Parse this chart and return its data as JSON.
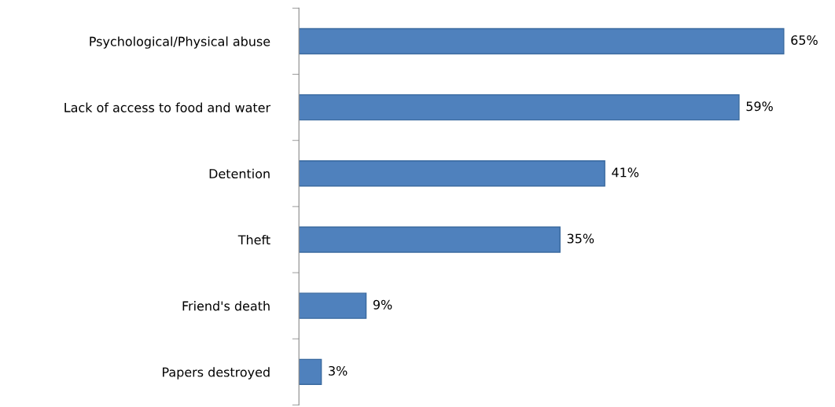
{
  "chart_data": {
    "type": "bar",
    "orientation": "horizontal",
    "categories": [
      "Psychological/Physical abuse",
      "Lack of access to food and water",
      "Detention",
      "Theft",
      "Friend's death",
      "Papers destroyed"
    ],
    "values": [
      65,
      59,
      41,
      35,
      9,
      3
    ],
    "value_labels": [
      "65%",
      "59%",
      "41%",
      "35%",
      "9%",
      "3%"
    ],
    "color": "#4f81bd",
    "tick_labels": "y",
    "grid": false,
    "legend": false
  }
}
